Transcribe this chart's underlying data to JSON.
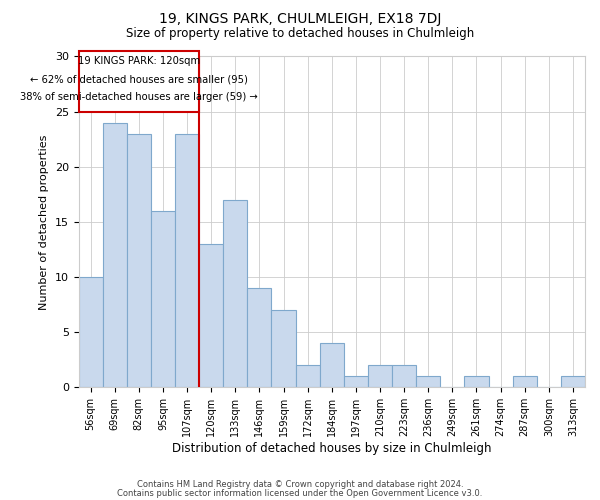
{
  "title": "19, KINGS PARK, CHULMLEIGH, EX18 7DJ",
  "subtitle": "Size of property relative to detached houses in Chulmleigh",
  "xlabel": "Distribution of detached houses by size in Chulmleigh",
  "ylabel": "Number of detached properties",
  "categories": [
    "56sqm",
    "69sqm",
    "82sqm",
    "95sqm",
    "107sqm",
    "120sqm",
    "133sqm",
    "146sqm",
    "159sqm",
    "172sqm",
    "184sqm",
    "197sqm",
    "210sqm",
    "223sqm",
    "236sqm",
    "249sqm",
    "261sqm",
    "274sqm",
    "287sqm",
    "300sqm",
    "313sqm"
  ],
  "values": [
    10,
    24,
    23,
    16,
    23,
    13,
    17,
    9,
    7,
    2,
    4,
    1,
    2,
    2,
    1,
    0,
    1,
    0,
    1,
    0,
    1
  ],
  "bar_color": "#c9d9ed",
  "bar_edge_color": "#7fa8cc",
  "vline_index": 5,
  "vline_color": "#cc0000",
  "annotation_title": "19 KINGS PARK: 120sqm",
  "annotation_line1": "← 62% of detached houses are smaller (95)",
  "annotation_line2": "38% of semi-detached houses are larger (59) →",
  "annotation_box_color": "#cc0000",
  "ylim": [
    0,
    30
  ],
  "yticks": [
    0,
    5,
    10,
    15,
    20,
    25,
    30
  ],
  "footer_line1": "Contains HM Land Registry data © Crown copyright and database right 2024.",
  "footer_line2": "Contains public sector information licensed under the Open Government Licence v3.0.",
  "bg_color": "#ffffff",
  "grid_color": "#cccccc"
}
